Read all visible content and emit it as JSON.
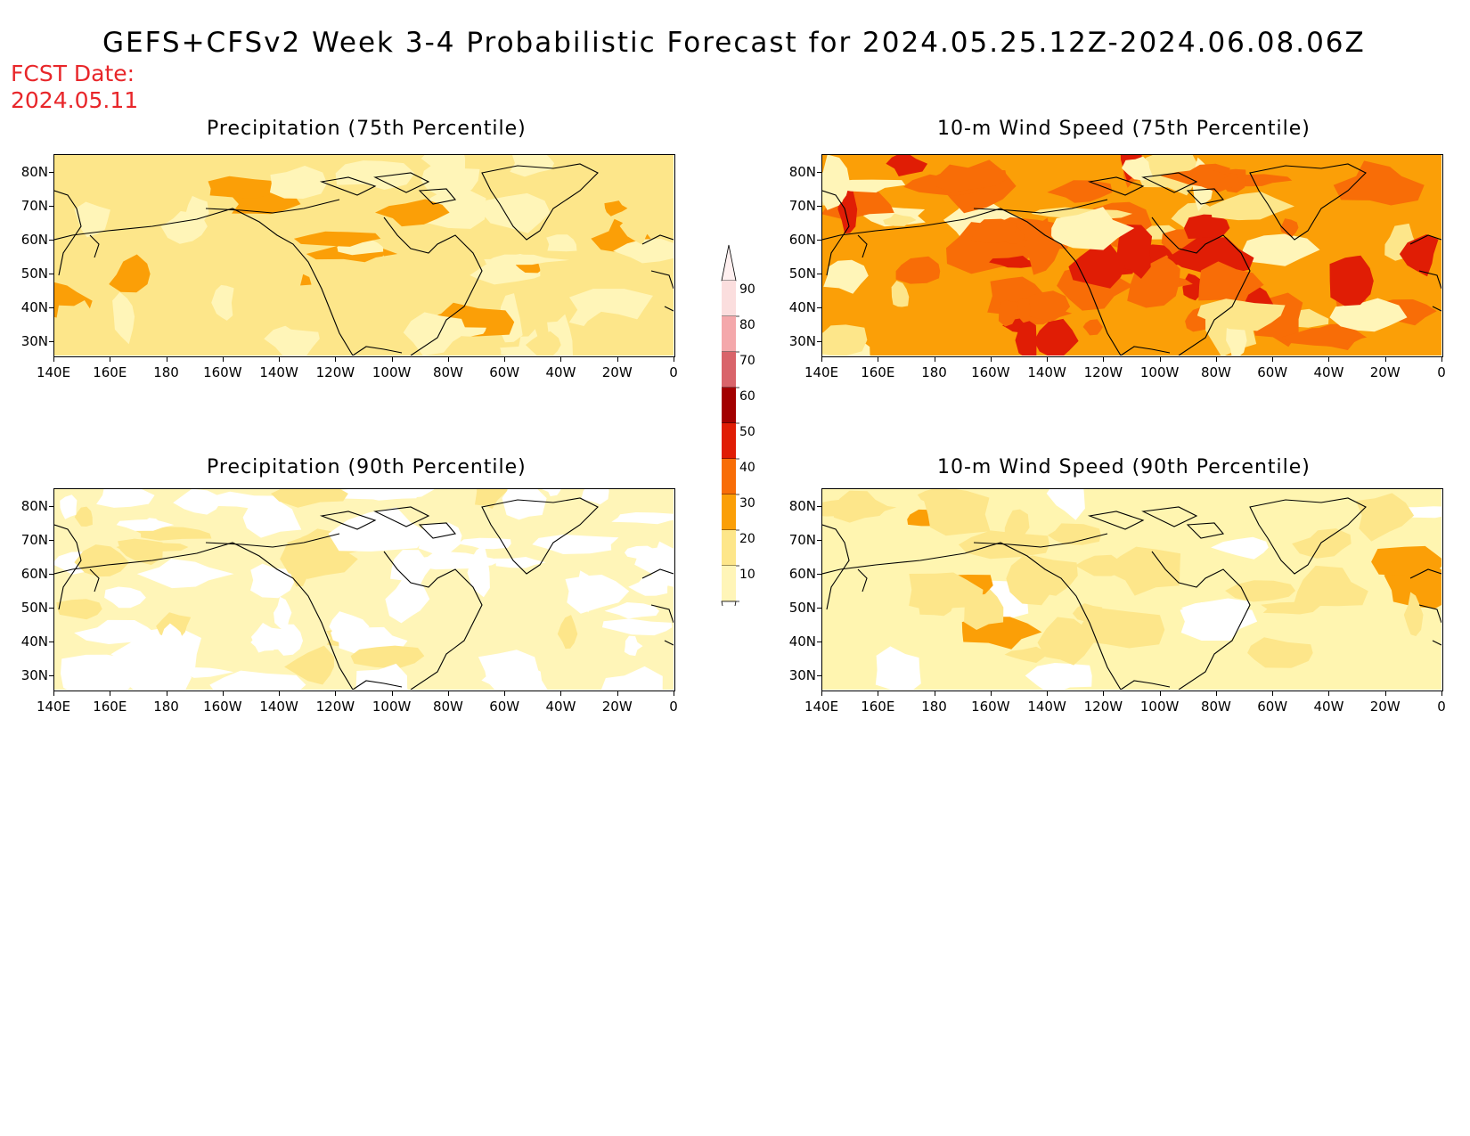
{
  "header": {
    "title": "GEFS+CFSv2 Week 3-4 Probabilistic Forecast for 2024.05.25.12Z-2024.06.08.06Z",
    "fcst_line1": "FCST Date:",
    "fcst_line2": "2024.05.11"
  },
  "panels": [
    {
      "title": "Precipitation (75th Percentile)",
      "base_color": "#fde68a",
      "scheme": "precip75"
    },
    {
      "title": "10-m Wind Speed (75th Percentile)",
      "base_color": "#fb9f07",
      "scheme": "wind75"
    },
    {
      "title": "Precipitation (90th Percentile)",
      "base_color": "#fff5b8",
      "scheme": "precip90"
    },
    {
      "title": "10-m Wind Speed (90th Percentile)",
      "base_color": "#fff5b0",
      "scheme": "wind90"
    }
  ],
  "lat_labels": [
    "80N",
    "70N",
    "60N",
    "50N",
    "40N",
    "30N"
  ],
  "lon_labels": [
    "140E",
    "160E",
    "180",
    "160W",
    "140W",
    "120W",
    "100W",
    "80W",
    "60W",
    "40W",
    "20W",
    "0"
  ],
  "colorbar": {
    "levels": [
      "90",
      "80",
      "70",
      "60",
      "50",
      "40",
      "30",
      "20",
      "10"
    ],
    "colors": [
      "#fbdede",
      "#f4a8ab",
      "#d9646a",
      "#a30000",
      "#e01d05",
      "#f86d07",
      "#fb9f07",
      "#fde68a",
      "#fff5b8"
    ]
  }
}
